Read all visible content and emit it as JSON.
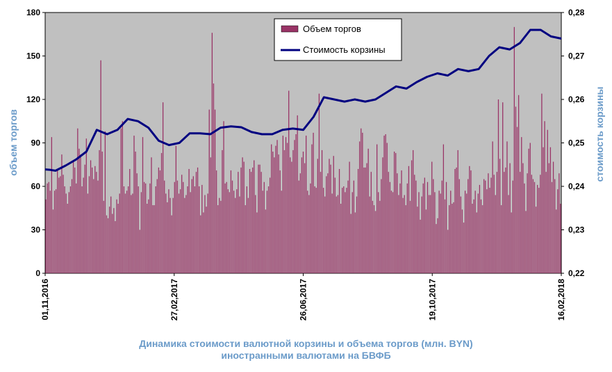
{
  "chart_data": {
    "type": "bar",
    "title_line1": "Динамика  стоимости валютной корзины и объема торгов (млн. BYN)",
    "title_line2": "иностранными валютами на БВФБ",
    "ylabel_left": "объем торгов",
    "ylabel_right": "стоимость корзины",
    "ylim_left": [
      0,
      180
    ],
    "ylim_right": [
      0.22,
      0.28
    ],
    "yticks_left": [
      "0",
      "30",
      "60",
      "90",
      "120",
      "150",
      "180"
    ],
    "yticks_right": [
      "0,22",
      "0,23",
      "0,24",
      "0,25",
      "0,26",
      "0,27",
      "0,28"
    ],
    "xticks": [
      "01,11,2016",
      "27,02,2017",
      "26,06,2017",
      "19,10,2017",
      "16,02,2018"
    ],
    "legend_position": "top-center",
    "grid": false,
    "plot_background": "#c0c0c0",
    "series": [
      {
        "name": "Объем торгов",
        "kind": "bar",
        "color": "#993366",
        "values": [
          51,
          62,
          63,
          57,
          94,
          44,
          57,
          58,
          71,
          66,
          67,
          82,
          68,
          60,
          55,
          48,
          56,
          60,
          65,
          78,
          73,
          62,
          100,
          86,
          82,
          60,
          66,
          75,
          93,
          55,
          67,
          78,
          73,
          65,
          74,
          70,
          64,
          85,
          147,
          84,
          50,
          98,
          40,
          38,
          46,
          53,
          41,
          45,
          36,
          51,
          48,
          55,
          100,
          105,
          60,
          55,
          57,
          60,
          72,
          54,
          55,
          95,
          84,
          69,
          60,
          30,
          56,
          94,
          63,
          62,
          48,
          51,
          62,
          80,
          47,
          47,
          60,
          65,
          73,
          71,
          83,
          118,
          64,
          55,
          49,
          58,
          52,
          40,
          52,
          63,
          88,
          64,
          55,
          58,
          68,
          63,
          52,
          54,
          60,
          72,
          56,
          65,
          67,
          60,
          70,
          73,
          60,
          40,
          61,
          42,
          54,
          46,
          55,
          113,
          80,
          166,
          131,
          113,
          71,
          47,
          52,
          50,
          85,
          105,
          62,
          63,
          58,
          56,
          71,
          64,
          57,
          52,
          58,
          70,
          53,
          73,
          80,
          77,
          47,
          60,
          52,
          72,
          70,
          73,
          78,
          54,
          42,
          75,
          75,
          70,
          57,
          63,
          44,
          57,
          60,
          66,
          89,
          84,
          80,
          88,
          92,
          82,
          71,
          57,
          95,
          85,
          94,
          90,
          126,
          80,
          77,
          85,
          92,
          96,
          109,
          64,
          69,
          80,
          84,
          76,
          95,
          57,
          54,
          62,
          89,
          97,
          60,
          59,
          79,
          124,
          70,
          85,
          59,
          53,
          67,
          69,
          79,
          75,
          55,
          81,
          66,
          53,
          54,
          72,
          48,
          59,
          60,
          56,
          59,
          64,
          77,
          41,
          56,
          64,
          42,
          53,
          72,
          91,
          100,
          97,
          73,
          73,
          76,
          86,
          53,
          70,
          50,
          47,
          43,
          89,
          56,
          50,
          65,
          80,
          95,
          96,
          90,
          70,
          63,
          57,
          56,
          84,
          83,
          69,
          54,
          62,
          71,
          52,
          54,
          47,
          62,
          74,
          50,
          78,
          85,
          68,
          64,
          46,
          56,
          37,
          53,
          62,
          66,
          44,
          63,
          54,
          54,
          77,
          65,
          56,
          34,
          38,
          57,
          55,
          64,
          89,
          51,
          63,
          30,
          47,
          57,
          48,
          49,
          72,
          73,
          85,
          65,
          53,
          44,
          35,
          57,
          55,
          65,
          74,
          71,
          48,
          51,
          57,
          42,
          55,
          61,
          51,
          47,
          65,
          64,
          58,
          69,
          59,
          66,
          91,
          68,
          54,
          70,
          120,
          79,
          47,
          118,
          70,
          73,
          91,
          54,
          76,
          42,
          64,
          170,
          115,
          101,
          123,
          70,
          94,
          76,
          62,
          43,
          69,
          86,
          90,
          68,
          65,
          63,
          46,
          61,
          59,
          68,
          124,
          87,
          105,
          70,
          99,
          76,
          87,
          63,
          77,
          65,
          44,
          58,
          69,
          48
        ]
      },
      {
        "name": "Стоимость корзины",
        "kind": "line",
        "color": "#000080",
        "x": [
          0,
          0.01,
          0.02,
          0.04,
          0.06,
          0.08,
          0.1,
          0.12,
          0.14,
          0.16,
          0.18,
          0.2,
          0.22,
          0.24,
          0.26,
          0.28,
          0.3,
          0.32,
          0.34,
          0.36,
          0.38,
          0.4,
          0.42,
          0.44,
          0.46,
          0.48,
          0.5,
          0.52,
          0.54,
          0.56,
          0.58,
          0.6,
          0.62,
          0.64,
          0.66,
          0.68,
          0.7,
          0.72,
          0.74,
          0.76,
          0.78,
          0.8,
          0.82,
          0.84,
          0.86,
          0.88,
          0.9,
          0.92,
          0.94,
          0.96,
          0.98,
          1.0
        ],
        "values": [
          0.2439,
          0.2438,
          0.2436,
          0.2448,
          0.2462,
          0.248,
          0.253,
          0.252,
          0.253,
          0.2555,
          0.255,
          0.2535,
          0.2505,
          0.2495,
          0.25,
          0.2522,
          0.2522,
          0.252,
          0.2535,
          0.2538,
          0.2536,
          0.2525,
          0.252,
          0.252,
          0.253,
          0.2533,
          0.253,
          0.256,
          0.2605,
          0.26,
          0.2595,
          0.26,
          0.2595,
          0.26,
          0.2615,
          0.263,
          0.2625,
          0.264,
          0.2652,
          0.266,
          0.2655,
          0.267,
          0.2665,
          0.267,
          0.27,
          0.272,
          0.2715,
          0.273,
          0.276,
          0.276,
          0.2745,
          0.274
        ]
      }
    ]
  }
}
